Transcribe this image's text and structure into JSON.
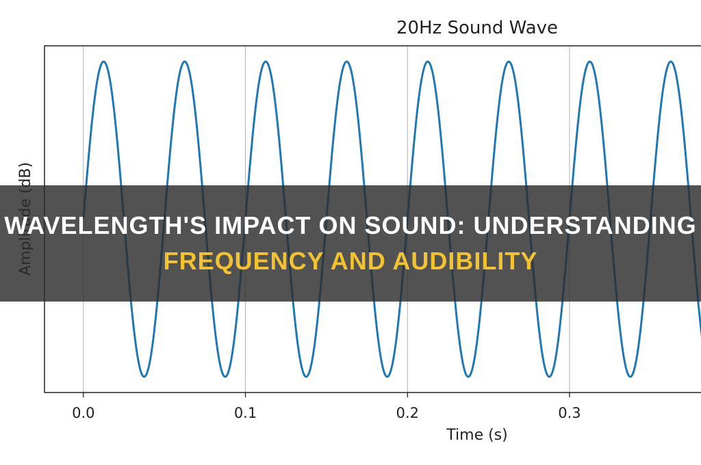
{
  "chart_data": {
    "type": "line",
    "title": "20Hz Sound Wave",
    "xlabel": "Time (s)",
    "ylabel": "Amplitude (dB)",
    "frequency_hz": 20,
    "xlim": [
      -0.024,
      0.39
    ],
    "ylim": [
      -1.1,
      1.1
    ],
    "xticks": [
      0.0,
      0.1,
      0.2,
      0.3
    ],
    "xtick_labels": [
      "0.0",
      "0.1",
      "0.2",
      "0.3"
    ],
    "grid": "vertical",
    "series": [
      {
        "color": "#1f77b4"
      }
    ]
  },
  "banner": {
    "line1": "Wavelength's Impact On Sound: Understanding",
    "line2": "Frequency And Audibility",
    "line1_color": "#ffffff",
    "line2_color": "#f2c230"
  }
}
